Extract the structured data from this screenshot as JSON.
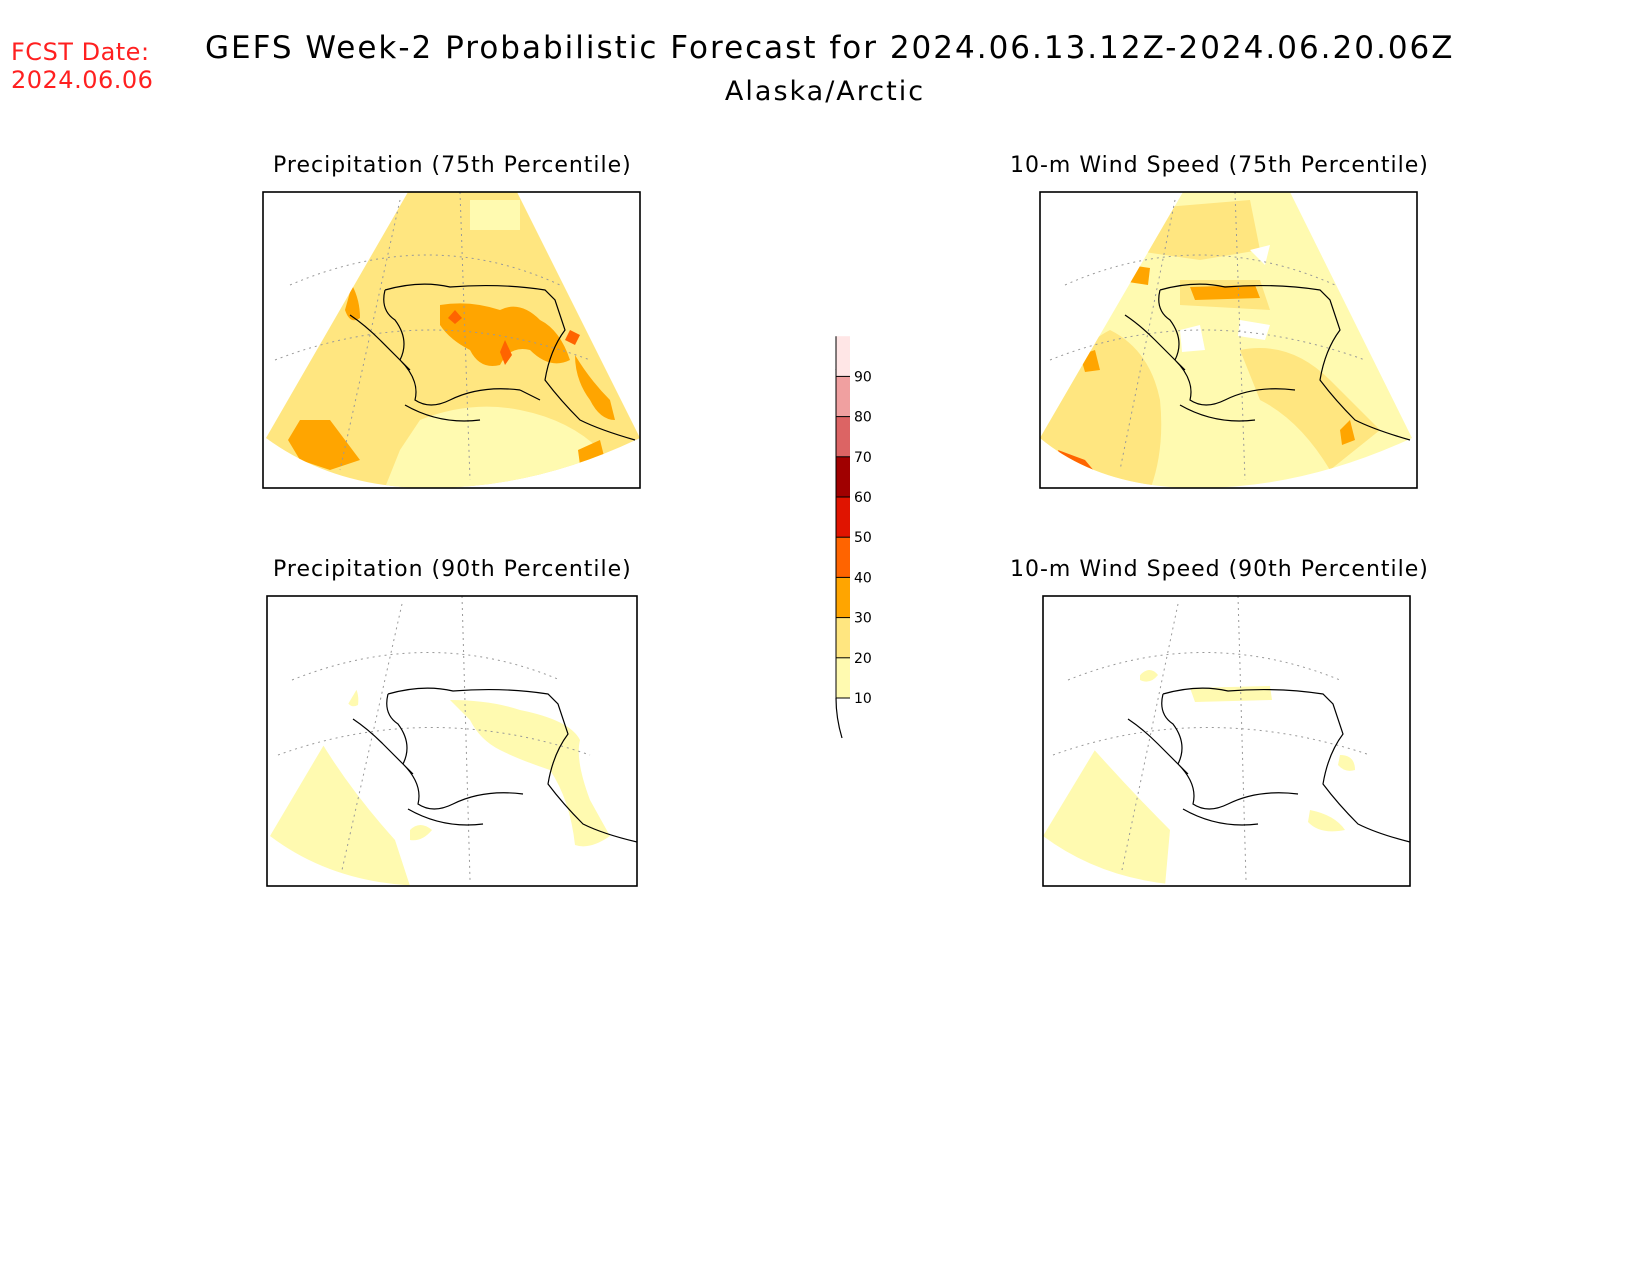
{
  "header": {
    "fcst_label": "FCST Date:",
    "fcst_date": "2024.06.06",
    "title": "GEFS Week-2 Probabilistic Forecast for 2024.06.13.12Z-2024.06.20.06Z",
    "region": "Alaska/Arctic"
  },
  "panels": [
    {
      "title": "Precipitation (75th Percentile)"
    },
    {
      "title": "10-m Wind Speed (75th Percentile)"
    },
    {
      "title": "Precipitation (90th Percentile)"
    },
    {
      "title": "10-m Wind Speed (90th Percentile)"
    }
  ],
  "colorbar": {
    "levels": [
      "10",
      "20",
      "30",
      "40",
      "50",
      "60",
      "70",
      "80",
      "90"
    ],
    "colors": [
      "#fffab0",
      "#ffe680",
      "#ffa500",
      "#ff6400",
      "#e01400",
      "#a00000",
      "#dc6464",
      "#f0a0a0",
      "#ffe6e6"
    ]
  }
}
